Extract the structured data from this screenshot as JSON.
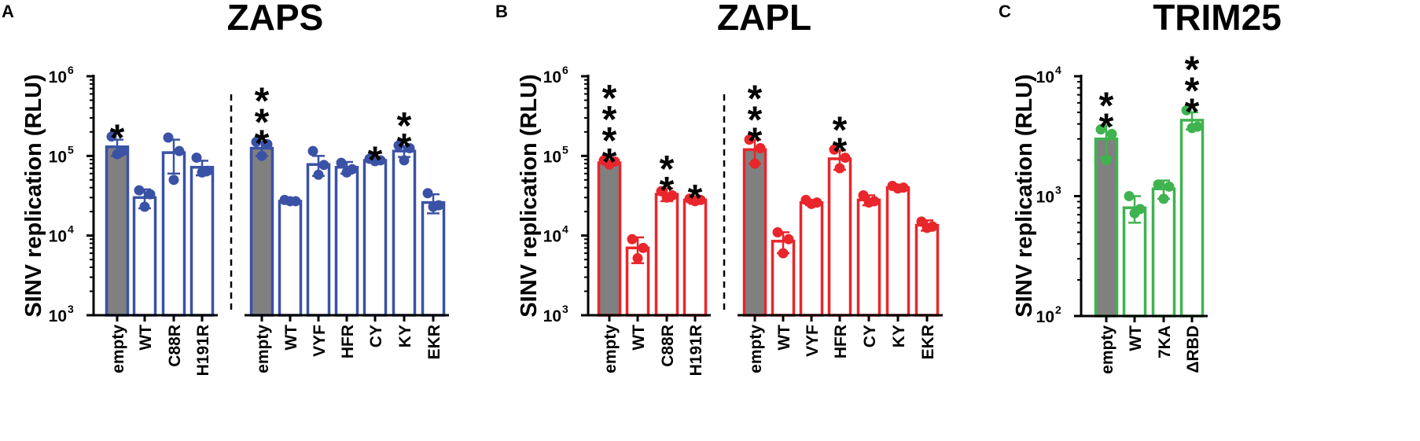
{
  "chart_data": [
    {
      "panel": "A",
      "title": "ZAPS",
      "type": "bar",
      "yscale": "log",
      "ylabel": "SINV replication  (RLU)",
      "ylim": [
        1000,
        1000000
      ],
      "yticks": [
        {
          "base": "10",
          "exp": "3"
        },
        {
          "base": "10",
          "exp": "4"
        },
        {
          "base": "10",
          "exp": "5"
        },
        {
          "base": "10",
          "exp": "6"
        }
      ],
      "accent": "#3a52a6",
      "control_fill": "#808080",
      "separator": "dashed line between experiment groups",
      "groups": [
        {
          "categories": [
            "empty",
            "WT",
            "C88R",
            "H191R"
          ],
          "values": [
            130000,
            30000,
            110000,
            72000
          ],
          "errors": [
            30000,
            8000,
            50000,
            15000
          ],
          "points": [
            [
              175000,
              115000,
              105000
            ],
            [
              37000,
              33000,
              23000
            ],
            [
              170000,
              115000,
              50000
            ],
            [
              95000,
              65000,
              62000
            ]
          ],
          "significance": [
            "*",
            "",
            "",
            ""
          ]
        },
        {
          "categories": [
            "empty",
            "WT",
            "VYF",
            "HFR",
            "CY",
            "KY",
            "EKR"
          ],
          "values": [
            125000,
            27000,
            78000,
            72000,
            88000,
            115000,
            26000
          ],
          "errors": [
            25000,
            1500,
            22000,
            12000,
            5000,
            18000,
            7000
          ],
          "points": [
            [
              150000,
              140000,
              100000
            ],
            [
              28000,
              27000,
              27000
            ],
            [
              115000,
              77000,
              58000
            ],
            [
              82000,
              68000,
              62000
            ],
            [
              92000,
              88000,
              86000
            ],
            [
              135000,
              125000,
              88000
            ],
            [
              34000,
              24000,
              23000
            ]
          ],
          "significance": [
            "***",
            "",
            "",
            "",
            "*",
            "**",
            ""
          ]
        }
      ]
    },
    {
      "panel": "B",
      "title": "ZAPL",
      "type": "bar",
      "yscale": "log",
      "ylabel": "SINV replication  (RLU)",
      "ylim": [
        1000,
        1000000
      ],
      "yticks": [
        {
          "base": "10",
          "exp": "3"
        },
        {
          "base": "10",
          "exp": "4"
        },
        {
          "base": "10",
          "exp": "5"
        },
        {
          "base": "10",
          "exp": "6"
        }
      ],
      "accent": "#e8262b",
      "control_fill": "#808080",
      "separator": "dashed line between experiment groups",
      "groups": [
        {
          "categories": [
            "empty",
            "WT",
            "C88R",
            "H191R"
          ],
          "values": [
            82000,
            7000,
            33000,
            28000
          ],
          "errors": [
            5000,
            2500,
            6000,
            3000
          ],
          "points": [
            [
              88000,
              85000,
              78000
            ],
            [
              9000,
              7000,
              5200
            ],
            [
              36000,
              32000,
              30000
            ],
            [
              29000,
              28000,
              27000
            ]
          ],
          "significance": [
            "****",
            "",
            "**",
            "*"
          ]
        },
        {
          "categories": [
            "empty",
            "WT",
            "VYF",
            "HFR",
            "CY",
            "KY",
            "EKR"
          ],
          "values": [
            120000,
            8500,
            26000,
            92000,
            28000,
            40000,
            13500
          ],
          "errors": [
            40000,
            2500,
            2000,
            25000,
            4000,
            2000,
            2000
          ],
          "points": [
            [
              160000,
              125000,
              80000
            ],
            [
              11000,
              9000,
              6000
            ],
            [
              28000,
              26000,
              25000
            ],
            [
              120000,
              95000,
              70000
            ],
            [
              32000,
              27000,
              26000
            ],
            [
              42000,
              40000,
              39000
            ],
            [
              15000,
              13000,
              12500
            ]
          ],
          "significance": [
            "***",
            "",
            "",
            "**",
            "",
            "",
            ""
          ]
        }
      ]
    },
    {
      "panel": "C",
      "title": "TRIM25",
      "type": "bar",
      "yscale": "log",
      "ylabel": "SINV replication  (RLU)",
      "ylim": [
        100,
        10000
      ],
      "yticks": [
        {
          "base": "10",
          "exp": "2"
        },
        {
          "base": "10",
          "exp": "3"
        },
        {
          "base": "10",
          "exp": "4"
        }
      ],
      "accent": "#3fb34f",
      "control_fill": "#808080",
      "groups": [
        {
          "categories": [
            "empty",
            "WT",
            "7KA",
            "ΔRBD"
          ],
          "values": [
            3000,
            800,
            1150,
            4300
          ],
          "errors": [
            900,
            200,
            200,
            700
          ],
          "points": [
            [
              3600,
              3300,
              2000
            ],
            [
              1000,
              780,
              720
            ],
            [
              1250,
              1200,
              950
            ],
            [
              5200,
              3800,
              3700
            ]
          ],
          "significance": [
            "**",
            "",
            "",
            "***"
          ]
        }
      ]
    }
  ]
}
